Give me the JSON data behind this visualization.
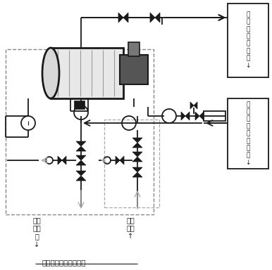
{
  "background_color": "#ffffff",
  "text_color": "#1a1a1a",
  "caption": "在线除盐防腐成套设备",
  "box1_text": "处\n理\n后\n物\n料\n返\n回\n↓",
  "box2_text": "抽\n出\n物\n料\n进\n行\n处\n理\n↓",
  "label1": "去污\n水汽\n提\n↓",
  "label2": "净化\n水来\n↑",
  "fig_width": 3.86,
  "fig_height": 3.84,
  "dpi": 100
}
